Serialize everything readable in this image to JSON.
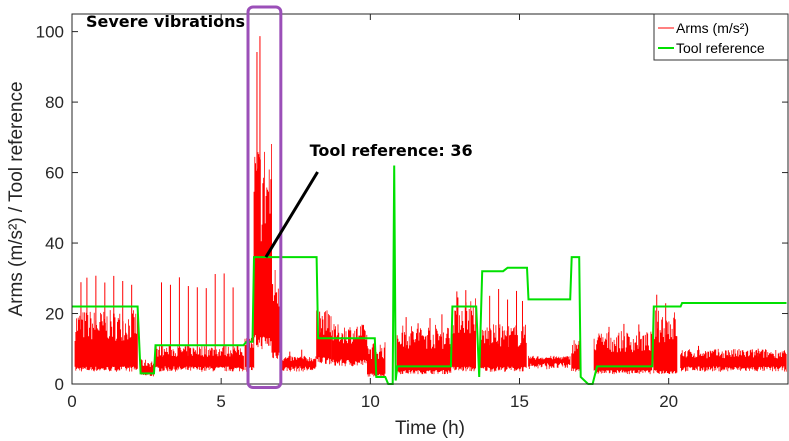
{
  "chart_data": {
    "type": "line",
    "xlabel": "Time (h)",
    "ylabel": "Arms (m/s²) / Tool reference",
    "xlim": [
      0,
      24
    ],
    "ylim": [
      0,
      105
    ],
    "xticks": [
      "0",
      "5",
      "10",
      "15",
      "20"
    ],
    "yticks": [
      "0",
      "20",
      "40",
      "60",
      "80",
      "100"
    ],
    "legend": {
      "position": "top-right",
      "entries": [
        "Arms (m/s²)",
        "Tool reference"
      ]
    },
    "colors": {
      "arms": "#ff0000",
      "tool": "#00e000",
      "highlight": "#9b4fb8",
      "axis": "#262626"
    },
    "series": [
      {
        "name": "Tool reference",
        "type": "step",
        "x": [
          0,
          2.2,
          2.3,
          2.75,
          2.8,
          5.75,
          5.85,
          6.05,
          6.1,
          6.95,
          7.0,
          8.2,
          8.25,
          9.9,
          10.0,
          10.15,
          10.2,
          10.5,
          10.6,
          10.75,
          10.8,
          10.85,
          10.9,
          11.0,
          12.7,
          12.75,
          13.55,
          13.65,
          13.75,
          14.45,
          14.6,
          14.75,
          15.25,
          15.3,
          16.7,
          16.75,
          17.0,
          17.05,
          17.3,
          17.45,
          17.6,
          17.7,
          19.45,
          19.5,
          20.4,
          20.45,
          23.95
        ],
        "y": [
          22,
          22,
          3,
          3,
          11,
          11,
          12,
          12,
          36,
          36,
          36,
          36,
          13,
          13,
          13,
          13,
          2,
          2,
          0,
          0,
          62,
          1,
          5,
          5,
          5,
          22,
          22,
          2,
          32,
          32,
          33,
          33,
          33,
          24,
          24,
          36,
          36,
          2,
          0,
          0,
          5,
          5,
          5,
          22,
          22,
          23,
          23
        ]
      },
      {
        "name": "Arms (m/s²)",
        "type": "segments",
        "segments": [
          {
            "x0": 0.1,
            "x1": 2.2,
            "base": 5,
            "top": 21,
            "spikes": [
              0.3,
              0.5,
              0.8,
              1.1,
              1.4,
              1.7,
              2.0
            ],
            "spike": 32
          },
          {
            "x0": 2.3,
            "x1": 2.75,
            "base": 3,
            "top": 7,
            "spikes": [],
            "spike": 0
          },
          {
            "x0": 2.8,
            "x1": 5.75,
            "base": 5,
            "top": 11,
            "spikes": [
              3.0,
              3.3,
              3.6,
              3.9,
              4.2,
              4.5,
              4.8,
              5.1,
              5.4
            ],
            "spike": 32
          },
          {
            "x0": 5.8,
            "x1": 6.1,
            "base": 5,
            "top": 14,
            "spikes": [],
            "spike": 0
          },
          {
            "x0": 6.1,
            "x1": 6.7,
            "base": 14,
            "top": 70,
            "spikes": [
              6.2,
              6.3
            ],
            "spike": 105
          },
          {
            "x0": 6.7,
            "x1": 7.0,
            "base": 10,
            "top": 34,
            "spikes": [],
            "spike": 0
          },
          {
            "x0": 7.05,
            "x1": 8.2,
            "base": 5,
            "top": 8,
            "spikes": [
              7.3,
              7.7
            ],
            "spike": 10
          },
          {
            "x0": 8.2,
            "x1": 8.7,
            "base": 8,
            "top": 21,
            "spikes": [
              8.3
            ],
            "spike": 23
          },
          {
            "x0": 8.7,
            "x1": 9.9,
            "base": 7,
            "top": 17,
            "spikes": [],
            "spike": 0
          },
          {
            "x0": 9.9,
            "x1": 10.5,
            "base": 3,
            "top": 12,
            "spikes": [],
            "spike": 0
          },
          {
            "x0": 10.9,
            "x1": 12.7,
            "base": 4,
            "top": 17,
            "spikes": [
              11.2,
              11.6,
              12.0,
              12.4
            ],
            "spike": 20
          },
          {
            "x0": 12.75,
            "x1": 13.55,
            "base": 5,
            "top": 25,
            "spikes": [
              12.9,
              13.2
            ],
            "spike": 27
          },
          {
            "x0": 13.7,
            "x1": 15.25,
            "base": 5,
            "top": 17,
            "spikes": [
              14.0,
              14.3,
              14.6,
              14.9,
              15.1
            ],
            "spike": 27
          },
          {
            "x0": 15.3,
            "x1": 16.7,
            "base": 6,
            "top": 8,
            "spikes": [],
            "spike": 0
          },
          {
            "x0": 16.75,
            "x1": 17.05,
            "base": 5,
            "top": 13,
            "spikes": [],
            "spike": 0
          },
          {
            "x0": 17.5,
            "x1": 19.45,
            "base": 4,
            "top": 15,
            "spikes": [
              18.0,
              18.5,
              19.0
            ],
            "spike": 18
          },
          {
            "x0": 19.5,
            "x1": 20.3,
            "base": 4,
            "top": 21,
            "spikes": [
              19.6,
              19.9
            ],
            "spike": 26
          },
          {
            "x0": 20.4,
            "x1": 23.95,
            "base": 5,
            "top": 10,
            "spikes": [
              21.0,
              22.0,
              23.0
            ],
            "spike": 11
          }
        ]
      }
    ],
    "annotations": [
      {
        "text": "Severe vibrations",
        "kind": "box",
        "x0": 5.9,
        "x1": 7.0,
        "y0": -1,
        "y1": 107
      },
      {
        "text": "Tool reference: 36",
        "kind": "arrow",
        "from_x": 8.5,
        "from_y": 63,
        "to_x": 6.5,
        "to_y": 36
      }
    ]
  }
}
